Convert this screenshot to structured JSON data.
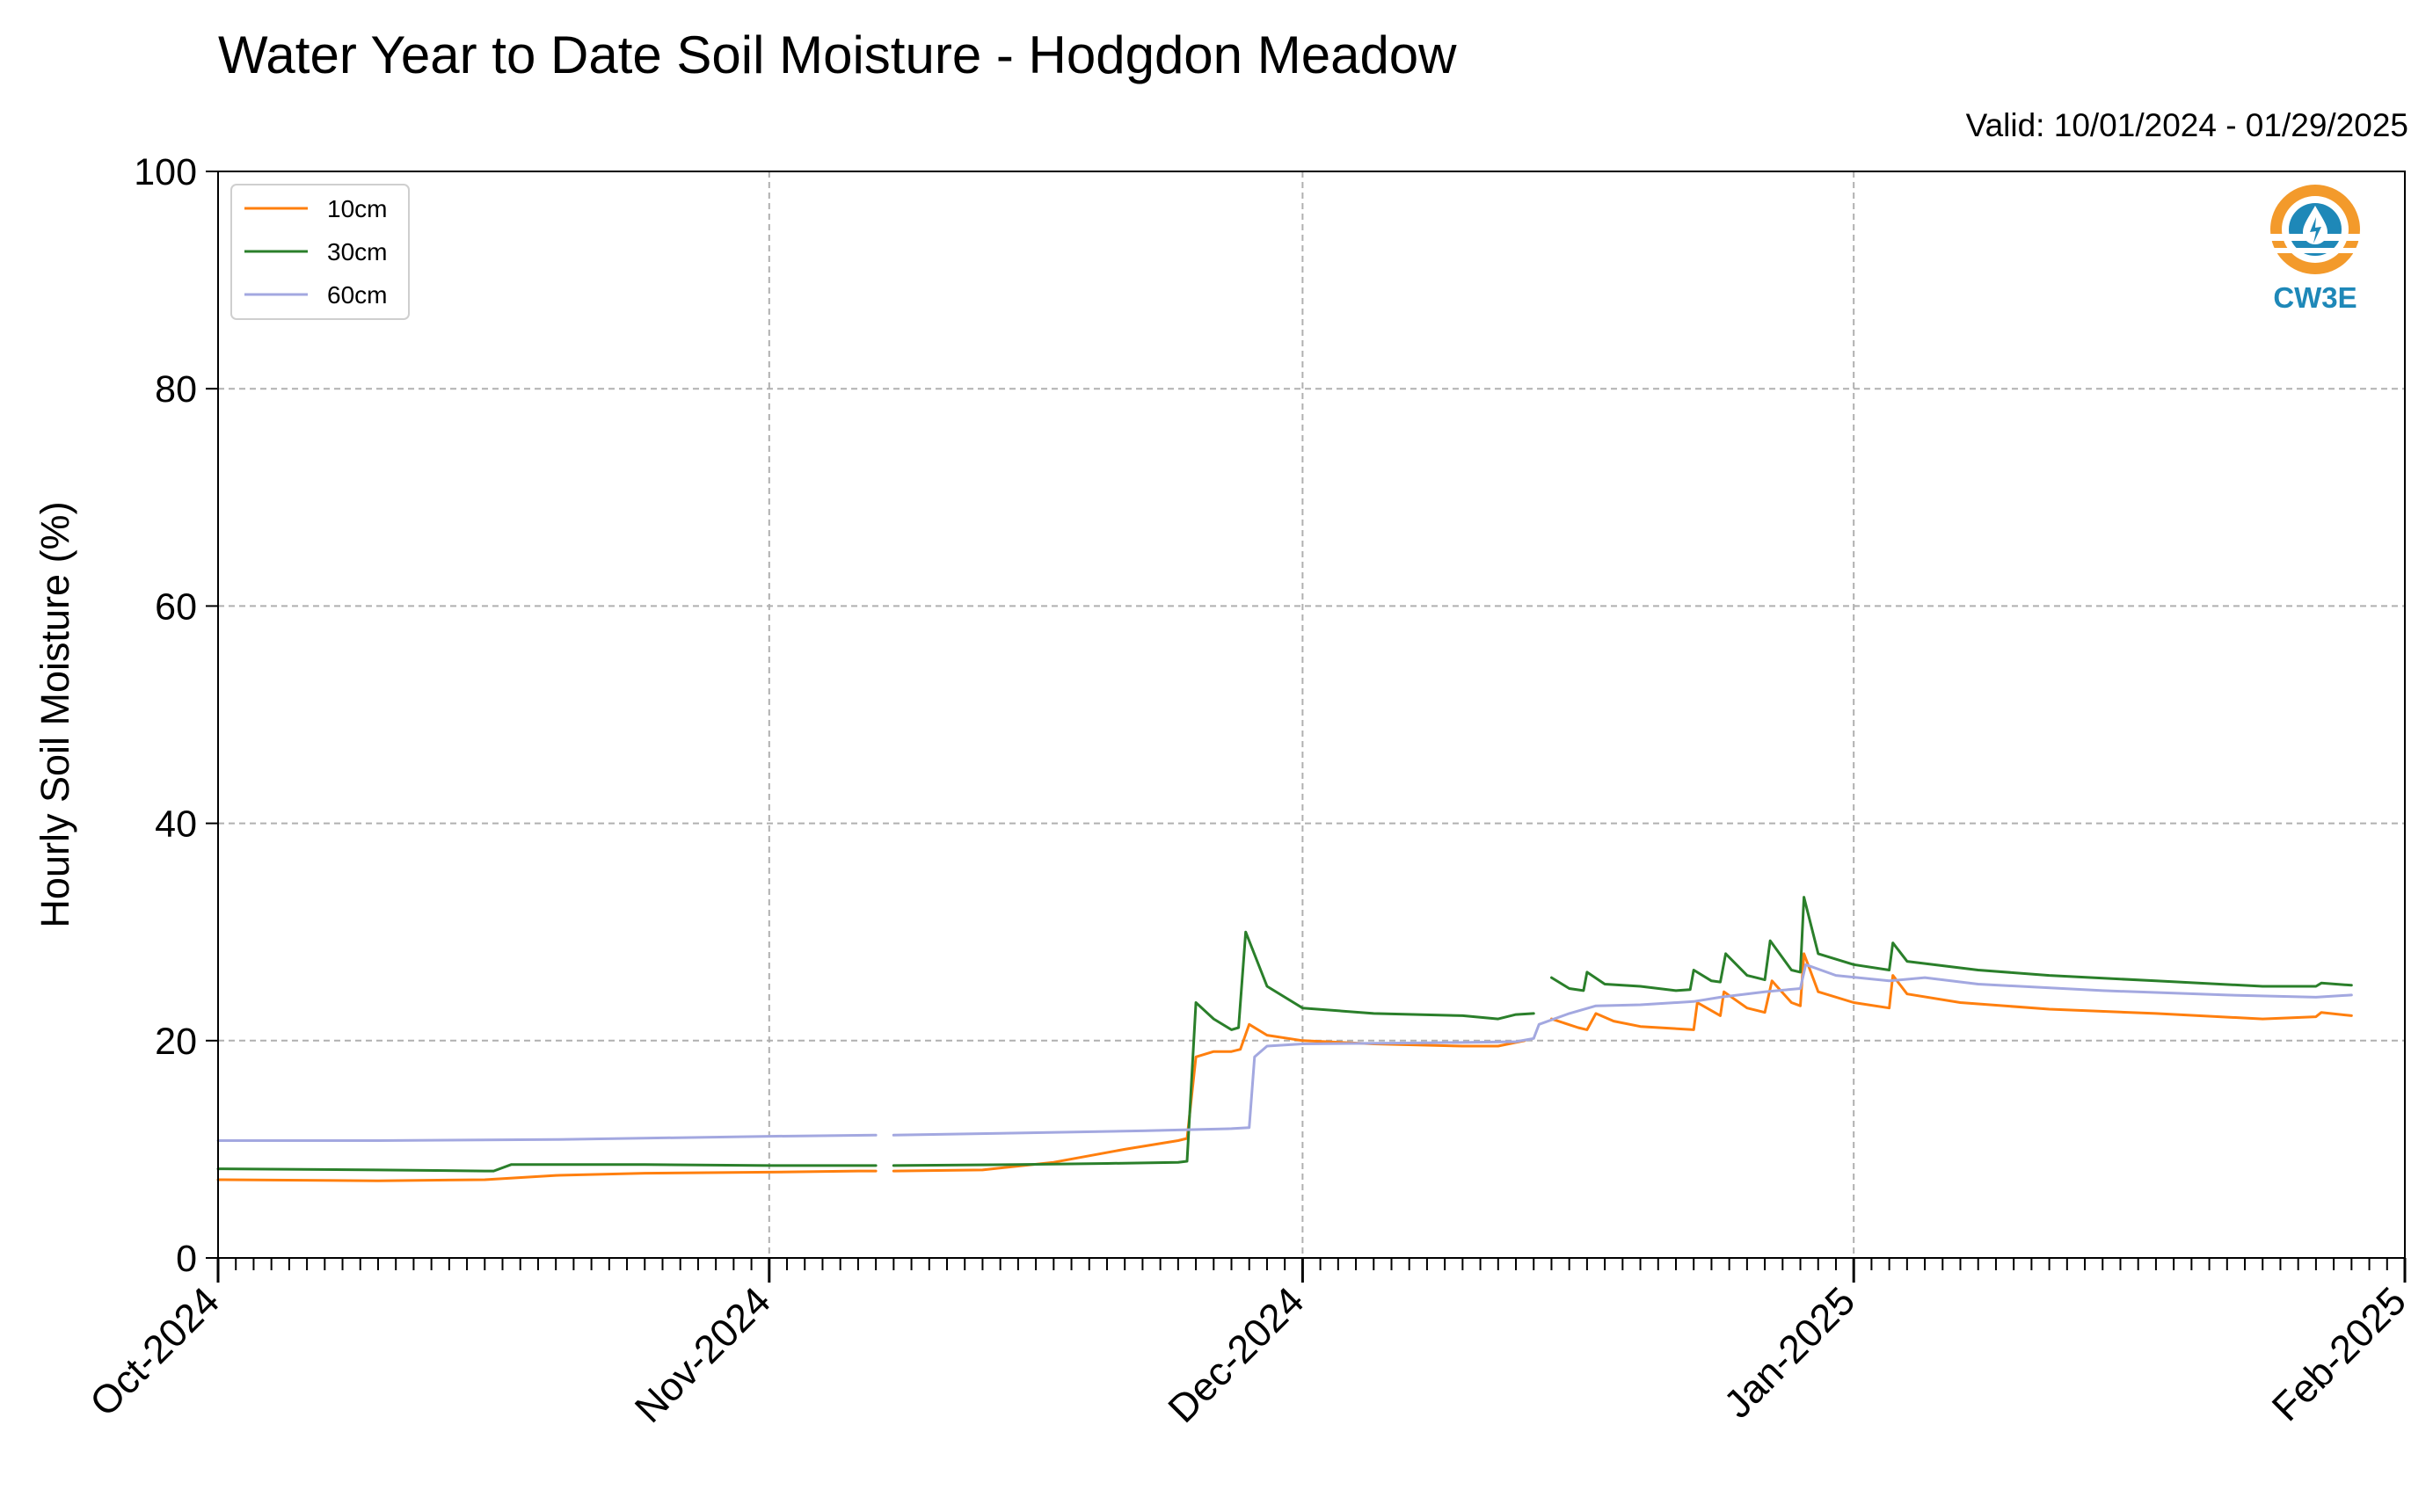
{
  "chart_data": {
    "type": "line",
    "title": "Water Year to Date Soil Moisture - Hodgdon Meadow",
    "subtitle": "Valid: 10/01/2024 - 01/29/2025",
    "xlabel": "",
    "ylabel": "Hourly Soil Moisture (%)",
    "ylim": [
      0,
      100
    ],
    "yticks": [
      "0",
      "20",
      "40",
      "60",
      "80",
      "100"
    ],
    "xlim": [
      "2024-10-01",
      "2025-02-01"
    ],
    "xticks": [
      "Oct-2024",
      "Nov-2024",
      "Dec-2024",
      "Jan-2025",
      "Feb-2025"
    ],
    "grid": true,
    "legend_position": "top-left",
    "logo_text": "CW3E",
    "series": [
      {
        "name": "10cm",
        "color": "#ff7f0e",
        "segments": [
          [
            [
              "2024-10-01",
              7.2
            ],
            [
              "2024-10-10",
              7.1
            ],
            [
              "2024-10-16",
              7.2
            ],
            [
              "2024-10-20",
              7.6
            ],
            [
              "2024-10-25",
              7.8
            ],
            [
              "2024-11-01",
              7.9
            ],
            [
              "2024-11-06",
              8.0
            ],
            [
              "2024-11-07",
              8.0
            ]
          ],
          [
            [
              "2024-11-08",
              8.0
            ],
            [
              "2024-11-13",
              8.1
            ],
            [
              "2024-11-17",
              8.8
            ],
            [
              "2024-11-21",
              10.0
            ],
            [
              "2024-11-24",
              10.8
            ],
            [
              "2024-11-24.5",
              11.0
            ],
            [
              "2024-11-25",
              18.5
            ],
            [
              "2024-11-26",
              19.0
            ],
            [
              "2024-11-27",
              19.0
            ],
            [
              "2024-11-27.5",
              19.2
            ],
            [
              "2024-11-28",
              21.5
            ],
            [
              "2024-11-29",
              20.5
            ],
            [
              "2024-12-01",
              20.0
            ],
            [
              "2024-12-05",
              19.7
            ],
            [
              "2024-12-10",
              19.5
            ],
            [
              "2024-12-12",
              19.5
            ],
            [
              "2024-12-13.5",
              20.0
            ]
          ],
          [
            [
              "2024-12-15",
              22.0
            ],
            [
              "2024-12-16.5",
              21.2
            ],
            [
              "2024-12-17",
              21.0
            ],
            [
              "2024-12-17.5",
              22.5
            ],
            [
              "2024-12-18.5",
              21.8
            ],
            [
              "2024-12-20",
              21.3
            ],
            [
              "2024-12-23",
              21.0
            ],
            [
              "2024-12-23.2",
              23.5
            ],
            [
              "2024-12-24.5",
              22.3
            ],
            [
              "2024-12-24.7",
              24.5
            ],
            [
              "2024-12-26",
              23.0
            ],
            [
              "2024-12-27",
              22.6
            ],
            [
              "2024-12-27.4",
              25.5
            ],
            [
              "2024-12-28.5",
              23.5
            ],
            [
              "2024-12-29",
              23.2
            ],
            [
              "2024-12-29.2",
              28.0
            ],
            [
              "2024-12-30",
              24.5
            ],
            [
              "2025-01-01",
              23.5
            ],
            [
              "2025-01-03",
              23.0
            ],
            [
              "2025-01-03.2",
              26.0
            ],
            [
              "2025-01-04",
              24.3
            ],
            [
              "2025-01-07",
              23.5
            ],
            [
              "2025-01-12",
              22.9
            ],
            [
              "2025-01-18",
              22.5
            ],
            [
              "2025-01-24",
              22.0
            ],
            [
              "2025-01-27",
              22.2
            ],
            [
              "2025-01-27.3",
              22.6
            ],
            [
              "2025-01-29",
              22.3
            ]
          ]
        ]
      },
      {
        "name": "30cm",
        "color": "#2a7f2a",
        "segments": [
          [
            [
              "2024-10-01",
              8.2
            ],
            [
              "2024-10-10",
              8.1
            ],
            [
              "2024-10-16",
              8.0
            ],
            [
              "2024-10-16.5",
              8.0
            ],
            [
              "2024-10-17.5",
              8.6
            ],
            [
              "2024-10-25",
              8.6
            ],
            [
              "2024-11-01",
              8.5
            ],
            [
              "2024-11-07",
              8.5
            ]
          ],
          [
            [
              "2024-11-08",
              8.5
            ],
            [
              "2024-11-15",
              8.6
            ],
            [
              "2024-11-20",
              8.7
            ],
            [
              "2024-11-24",
              8.8
            ],
            [
              "2024-11-24.5",
              8.9
            ],
            [
              "2024-11-25",
              23.5
            ],
            [
              "2024-11-26",
              22.0
            ],
            [
              "2024-11-27",
              21.0
            ],
            [
              "2024-11-27.4",
              21.2
            ],
            [
              "2024-11-27.8",
              30.0
            ],
            [
              "2024-11-29",
              25.0
            ],
            [
              "2024-12-01",
              23.0
            ],
            [
              "2024-12-05",
              22.5
            ],
            [
              "2024-12-10",
              22.3
            ],
            [
              "2024-12-12",
              22.0
            ],
            [
              "2024-12-13",
              22.4
            ],
            [
              "2024-12-14",
              22.5
            ]
          ],
          [
            [
              "2024-12-15",
              25.8
            ],
            [
              "2024-12-16",
              24.8
            ],
            [
              "2024-12-16.8",
              24.6
            ],
            [
              "2024-12-17",
              26.3
            ],
            [
              "2024-12-18",
              25.2
            ],
            [
              "2024-12-20",
              25.0
            ],
            [
              "2024-12-22",
              24.6
            ],
            [
              "2024-12-22.8",
              24.7
            ],
            [
              "2024-12-23",
              26.5
            ],
            [
              "2024-12-24",
              25.5
            ],
            [
              "2024-12-24.5",
              25.4
            ],
            [
              "2024-12-24.8",
              28.0
            ],
            [
              "2024-12-26",
              26.0
            ],
            [
              "2024-12-27",
              25.6
            ],
            [
              "2024-12-27.3",
              29.2
            ],
            [
              "2024-12-28.5",
              26.5
            ],
            [
              "2024-12-29",
              26.3
            ],
            [
              "2024-12-29.2",
              33.2
            ],
            [
              "2024-12-30",
              28.0
            ],
            [
              "2025-01-01",
              27.0
            ],
            [
              "2025-01-03",
              26.5
            ],
            [
              "2025-01-03.2",
              29.0
            ],
            [
              "2025-01-04",
              27.3
            ],
            [
              "2025-01-08",
              26.5
            ],
            [
              "2025-01-12",
              26.0
            ],
            [
              "2025-01-18",
              25.5
            ],
            [
              "2025-01-24",
              25.0
            ],
            [
              "2025-01-27",
              25.0
            ],
            [
              "2025-01-27.3",
              25.3
            ],
            [
              "2025-01-29",
              25.1
            ]
          ]
        ]
      },
      {
        "name": "60cm",
        "color": "#a3a8e0",
        "segments": [
          [
            [
              "2024-10-01",
              10.8
            ],
            [
              "2024-10-10",
              10.8
            ],
            [
              "2024-10-20",
              10.9
            ],
            [
              "2024-11-01",
              11.2
            ],
            [
              "2024-11-07",
              11.3
            ]
          ],
          [
            [
              "2024-11-08",
              11.3
            ],
            [
              "2024-11-15",
              11.5
            ],
            [
              "2024-11-22",
              11.7
            ],
            [
              "2024-11-27",
              11.9
            ],
            [
              "2024-11-28",
              12.0
            ],
            [
              "2024-11-28.3",
              18.5
            ],
            [
              "2024-11-29",
              19.5
            ],
            [
              "2024-12-01",
              19.7
            ],
            [
              "2024-12-08",
              19.8
            ],
            [
              "2024-12-13",
              19.9
            ],
            [
              "2024-12-14",
              20.2
            ],
            [
              "2024-12-14.3",
              21.5
            ],
            [
              "2024-12-16",
              22.5
            ],
            [
              "2024-12-17.5",
              23.2
            ],
            [
              "2024-12-20",
              23.3
            ],
            [
              "2024-12-23",
              23.6
            ],
            [
              "2024-12-24.5",
              24.0
            ],
            [
              "2024-12-27",
              24.5
            ],
            [
              "2024-12-29",
              24.8
            ],
            [
              "2024-12-29.3",
              27.0
            ],
            [
              "2024-12-31",
              26.0
            ],
            [
              "2025-01-03",
              25.5
            ],
            [
              "2025-01-05",
              25.8
            ],
            [
              "2025-01-08",
              25.2
            ],
            [
              "2025-01-15",
              24.6
            ],
            [
              "2025-01-22",
              24.2
            ],
            [
              "2025-01-27",
              24.0
            ],
            [
              "2025-01-29",
              24.2
            ]
          ]
        ]
      }
    ]
  }
}
